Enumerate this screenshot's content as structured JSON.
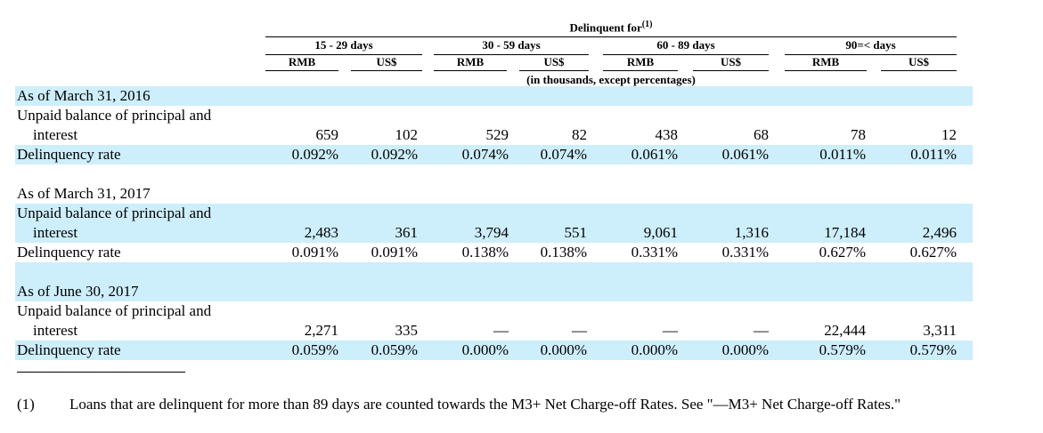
{
  "header": {
    "title": "Delinquent for",
    "footnote_ref": "(1)",
    "units_note": "(in thousands, except percentages)",
    "buckets": [
      {
        "label": "15 - 29 days",
        "rmb": "RMB",
        "usd": "US$"
      },
      {
        "label": "30 - 59 days",
        "rmb": "RMB",
        "usd": "US$"
      },
      {
        "label": "60 - 89 days",
        "rmb": "RMB",
        "usd": "US$"
      },
      {
        "label": "90=< days",
        "rmb": "RMB",
        "usd": "US$"
      }
    ]
  },
  "sections": [
    {
      "as_of": "As of March 31, 2016",
      "balance_label_1": "Unpaid balance of principal and",
      "balance_label_2": "interest",
      "balance": [
        "659",
        "102",
        "529",
        "82",
        "438",
        "68",
        "78",
        "12"
      ],
      "rate_label": "Delinquency rate",
      "rate": [
        "0.092%",
        "0.092%",
        "0.074%",
        "0.074%",
        "0.061%",
        "0.061%",
        "0.011%",
        "0.011%"
      ]
    },
    {
      "as_of": "As of March 31, 2017",
      "balance_label_1": "Unpaid balance of principal and",
      "balance_label_2": "interest",
      "balance": [
        "2,483",
        "361",
        "3,794",
        "551",
        "9,061",
        "1,316",
        "17,184",
        "2,496"
      ],
      "rate_label": "Delinquency rate",
      "rate": [
        "0.091%",
        "0.091%",
        "0.138%",
        "0.138%",
        "0.331%",
        "0.331%",
        "0.627%",
        "0.627%"
      ]
    },
    {
      "as_of": "As of June 30, 2017",
      "balance_label_1": "Unpaid balance of principal and",
      "balance_label_2": "interest",
      "balance": [
        "2,271",
        "335",
        "—",
        "—",
        "—",
        "—",
        "22,444",
        "3,311"
      ],
      "rate_label": "Delinquency rate",
      "rate": [
        "0.059%",
        "0.059%",
        "0.000%",
        "0.000%",
        "0.000%",
        "0.000%",
        "0.579%",
        "0.579%"
      ]
    }
  ],
  "footnote": {
    "marker": "(1)",
    "text": "Loans that are delinquent for more than 89 days are counted towards the M3+ Net Charge-off Rates. See \"—M3+ Net Charge-off Rates.\""
  }
}
